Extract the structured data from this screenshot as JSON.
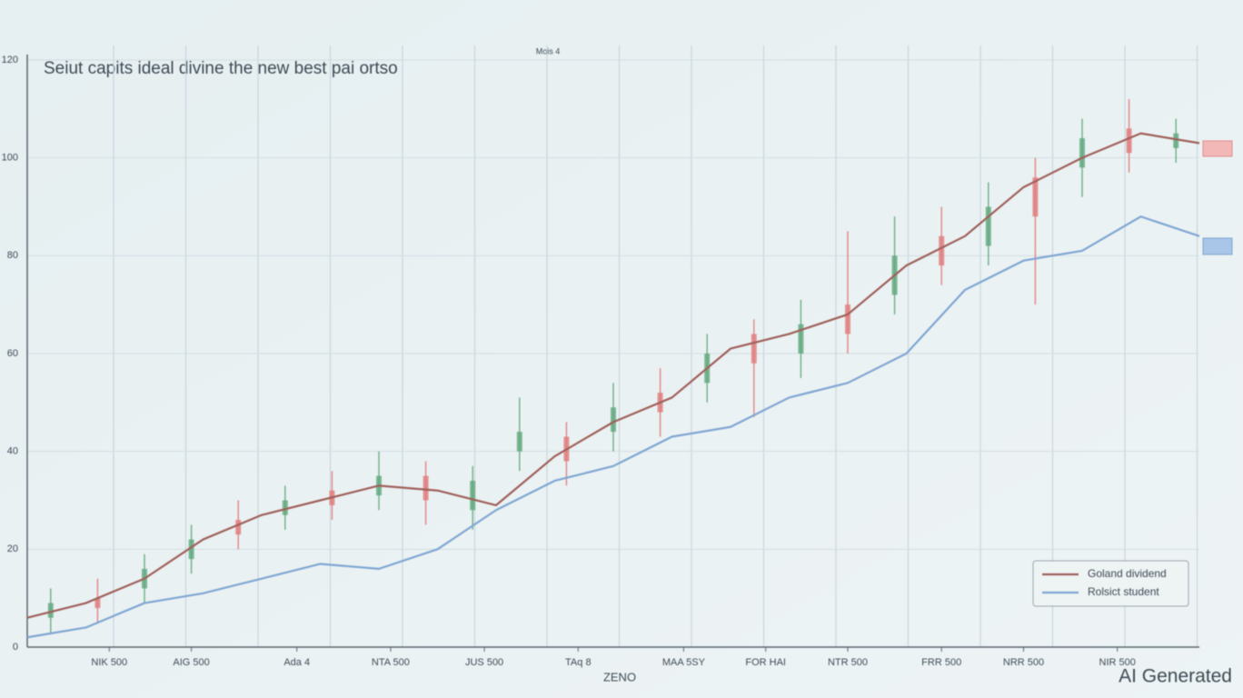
{
  "chart_data": {
    "type": "line",
    "title": "Seiut capits ideal divine the new best pai ortso",
    "subtitle": "Mois 4",
    "x_label": "ZENO",
    "watermark": "AI Generated",
    "xlim": [
      0,
      100
    ],
    "ylim": [
      0,
      120
    ],
    "xticks": [
      {
        "value": 7,
        "label": "NIK 500"
      },
      {
        "value": 14,
        "label": "AIG 500"
      },
      {
        "value": 23,
        "label": "Ada 4"
      },
      {
        "value": 31,
        "label": "NTA 500"
      },
      {
        "value": 39,
        "label": "JUS 500"
      },
      {
        "value": 47,
        "label": "TAq 8"
      },
      {
        "value": 56,
        "label": "MAA 5SY"
      },
      {
        "value": 63,
        "label": "FOR HAI"
      },
      {
        "value": 70,
        "label": "NTR 500"
      },
      {
        "value": 78,
        "label": "FRR 500"
      },
      {
        "value": 85,
        "label": "NRR 500"
      },
      {
        "value": 93,
        "label": "NIR 500"
      }
    ],
    "yticks": [
      0,
      20,
      40,
      60,
      80,
      100,
      120
    ],
    "grid": true,
    "legend": "lower right",
    "x": [
      0,
      5,
      10,
      15,
      20,
      25,
      30,
      35,
      40,
      45,
      50,
      55,
      60,
      65,
      70,
      75,
      80,
      85,
      90,
      95,
      100
    ],
    "series": [
      {
        "name": "Goland dividend",
        "color": "#a0605a",
        "values": [
          6,
          9,
          14,
          22,
          27,
          30,
          33,
          32,
          29,
          39,
          46,
          51,
          61,
          64,
          68,
          78,
          84,
          94,
          100,
          105,
          103
        ]
      },
      {
        "name": "Rolsict student",
        "color": "#7fa6d3",
        "values": [
          2,
          4,
          9,
          11,
          14,
          17,
          16,
          20,
          28,
          34,
          37,
          43,
          45,
          51,
          54,
          60,
          73,
          79,
          81,
          88,
          84
        ]
      }
    ],
    "ohlc": {
      "up_color": "#5fa77c",
      "down_color": "#e07a7a",
      "x": [
        2,
        6,
        10,
        14,
        18,
        22,
        26,
        30,
        34,
        38,
        42,
        46,
        50,
        54,
        58,
        62,
        66,
        70,
        74,
        78,
        82,
        86,
        90,
        94,
        98
      ],
      "open": [
        6,
        10,
        12,
        18,
        26,
        27,
        32,
        31,
        35,
        28,
        40,
        43,
        44,
        52,
        54,
        64,
        60,
        70,
        72,
        84,
        82,
        96,
        98,
        106,
        102
      ],
      "close": [
        9,
        8,
        16,
        22,
        23,
        30,
        29,
        35,
        30,
        34,
        44,
        38,
        49,
        48,
        60,
        58,
        66,
        64,
        80,
        78,
        90,
        88,
        104,
        101,
        105
      ],
      "high": [
        12,
        14,
        19,
        25,
        30,
        33,
        36,
        40,
        38,
        37,
        51,
        46,
        54,
        57,
        64,
        67,
        71,
        85,
        88,
        90,
        95,
        100,
        108,
        112,
        108
      ],
      "low": [
        3,
        5,
        9,
        15,
        20,
        24,
        26,
        28,
        25,
        24,
        36,
        33,
        40,
        43,
        50,
        47,
        55,
        60,
        68,
        74,
        78,
        70,
        92,
        97,
        99
      ]
    }
  }
}
